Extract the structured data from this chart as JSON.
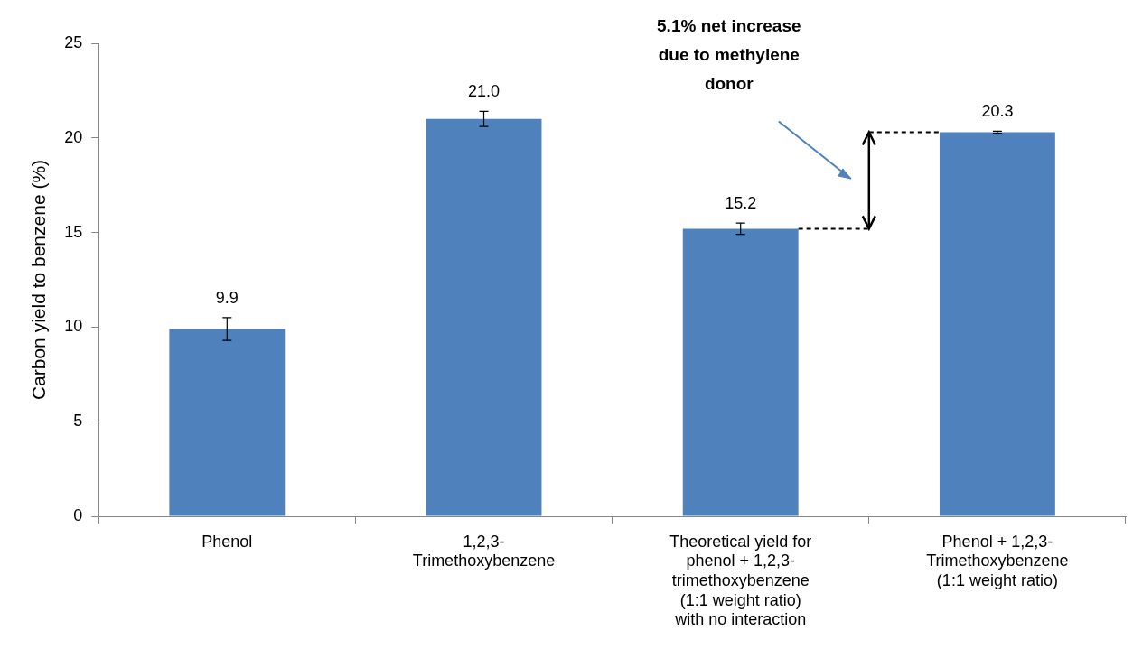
{
  "chart_data": {
    "type": "bar",
    "ylabel": "Carbon yield to benzene (%)",
    "categories": [
      "Phenol",
      "1,2,3-Trimethoxybenzene",
      "Theoretical yield for phenol + 1,2,3-trimethoxybenzene (1:1 weight ratio) with no interaction",
      "Phenol + 1,2,3-Trimethoxybenzene (1:1 weight ratio)"
    ],
    "values": [
      9.9,
      21.0,
      15.2,
      20.3
    ],
    "value_labels": [
      "9.9",
      "21.0",
      "15.2",
      "20.3"
    ],
    "errors": [
      0.6,
      0.4,
      0.3,
      0.05
    ],
    "color": "#4f81bd",
    "ylim": [
      0,
      25
    ],
    "yticks": [
      0,
      5,
      10,
      15,
      20,
      25
    ],
    "grid": false,
    "legend": false,
    "annotations": [
      "5.1% net increase due to methylene donor"
    ]
  }
}
